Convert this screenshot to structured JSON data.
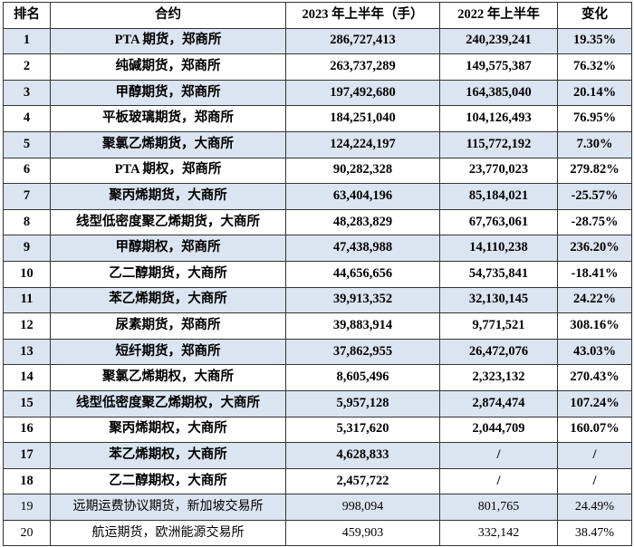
{
  "table": {
    "headers": [
      "排名",
      "合约",
      "2023 年上半年（手）",
      "2022 年上半年",
      "变化"
    ],
    "rows": [
      {
        "rank": "1",
        "contract": "PTA 期货，郑商所",
        "h1_2023": "286,727,413",
        "h1_2022": "240,239,241",
        "change": "19.35%",
        "emphasis": "bold"
      },
      {
        "rank": "2",
        "contract": "纯碱期货，郑商所",
        "h1_2023": "263,737,289",
        "h1_2022": "149,575,387",
        "change": "76.32%",
        "emphasis": "bold"
      },
      {
        "rank": "3",
        "contract": "甲醇期货，郑商所",
        "h1_2023": "197,492,680",
        "h1_2022": "164,385,040",
        "change": "20.14%",
        "emphasis": "bold"
      },
      {
        "rank": "4",
        "contract": "平板玻璃期货，郑商所",
        "h1_2023": "184,251,040",
        "h1_2022": "104,126,493",
        "change": "76.95%",
        "emphasis": "bold"
      },
      {
        "rank": "5",
        "contract": "聚氯乙烯期货，大商所",
        "h1_2023": "124,224,197",
        "h1_2022": "115,772,192",
        "change": "7.30%",
        "emphasis": "bold"
      },
      {
        "rank": "6",
        "contract": "PTA 期权，郑商所",
        "h1_2023": "90,282,328",
        "h1_2022": "23,770,023",
        "change": "279.82%",
        "emphasis": "bold"
      },
      {
        "rank": "7",
        "contract": "聚丙烯期货，大商所",
        "h1_2023": "63,404,196",
        "h1_2022": "85,184,021",
        "change": "-25.57%",
        "emphasis": "bold"
      },
      {
        "rank": "8",
        "contract": "线型低密度聚乙烯期货，大商所",
        "h1_2023": "48,283,829",
        "h1_2022": "67,763,061",
        "change": "-28.75%",
        "emphasis": "bold"
      },
      {
        "rank": "9",
        "contract": "甲醇期权，郑商所",
        "h1_2023": "47,438,988",
        "h1_2022": "14,110,238",
        "change": "236.20%",
        "emphasis": "bold"
      },
      {
        "rank": "10",
        "contract": "乙二醇期货，大商所",
        "h1_2023": "44,656,656",
        "h1_2022": "54,735,841",
        "change": "-18.41%",
        "emphasis": "bold"
      },
      {
        "rank": "11",
        "contract": "苯乙烯期货，大商所",
        "h1_2023": "39,913,352",
        "h1_2022": "32,130,145",
        "change": "24.22%",
        "emphasis": "bold"
      },
      {
        "rank": "12",
        "contract": "尿素期货，郑商所",
        "h1_2023": "39,883,914",
        "h1_2022": "9,771,521",
        "change": "308.16%",
        "emphasis": "bold"
      },
      {
        "rank": "13",
        "contract": "短纤期货，郑商所",
        "h1_2023": "37,862,955",
        "h1_2022": "26,472,076",
        "change": "43.03%",
        "emphasis": "bold"
      },
      {
        "rank": "14",
        "contract": "聚氯乙烯期权，大商所",
        "h1_2023": "8,605,496",
        "h1_2022": "2,323,132",
        "change": "270.43%",
        "emphasis": "bold"
      },
      {
        "rank": "15",
        "contract": "线型低密度聚乙烯期权，大商所",
        "h1_2023": "5,957,128",
        "h1_2022": "2,874,474",
        "change": "107.24%",
        "emphasis": "bold"
      },
      {
        "rank": "16",
        "contract": "聚丙烯期权，大商所",
        "h1_2023": "5,317,620",
        "h1_2022": "2,044,709",
        "change": "160.07%",
        "emphasis": "bold"
      },
      {
        "rank": "17",
        "contract": "苯乙烯期权，大商所",
        "h1_2023": "4,628,833",
        "h1_2022": "/",
        "change": "/",
        "emphasis": "bold"
      },
      {
        "rank": "18",
        "contract": "乙二醇期权，大商所",
        "h1_2023": "2,457,722",
        "h1_2022": "/",
        "change": "/",
        "emphasis": "bold"
      },
      {
        "rank": "19",
        "contract": "远期运费协议期货，新加坡交易所",
        "h1_2023": "998,094",
        "h1_2022": "801,765",
        "change": "24.49%",
        "emphasis": "normal"
      },
      {
        "rank": "20",
        "contract": "航运期货，欧洲能源交易所",
        "h1_2023": "459,903",
        "h1_2022": "332,142",
        "change": "38.47%",
        "emphasis": "normal"
      }
    ]
  },
  "colors": {
    "row_alt_bg": "#dbe5f1",
    "row_bg": "#ffffff",
    "border": "#333333",
    "text": "#000000"
  }
}
